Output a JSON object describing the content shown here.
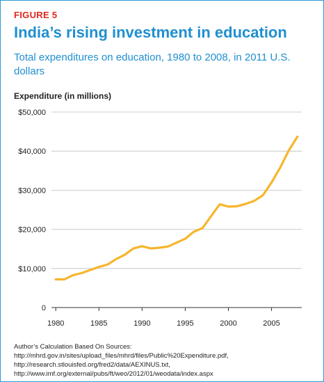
{
  "figure_label": "FIGURE 5",
  "title": "India’s rising investment in education",
  "subtitle": "Total expenditures on education, 1980 to 2008, in 2011 U.S. dollars",
  "source": "Author’s Calculation Based On Sources: http://mhrd.gov.in/sites/upload_files/mhrd/files/Public%20Expenditure.pdf, http://research.stlouisfed.org/fred2/data/AEXINUS.txt, http://www.imf.org/external/pubs/ft/weo/2012/01/weodata/index.aspx",
  "colors": {
    "line": "#f7b52c",
    "title": "#1f8fd0",
    "figure_label": "#e0261b",
    "grid": "#bdbdbd",
    "border": "#2a9ad6"
  },
  "chart_data": {
    "type": "line",
    "ylabel": "Expenditure (in millions)",
    "xlim": [
      1979.5,
      2008.5
    ],
    "ylim": [
      0,
      50000
    ],
    "x_ticks": [
      1980,
      1985,
      1990,
      1995,
      2000,
      2005
    ],
    "x_tick_labels": [
      "1980",
      "1985",
      "1990",
      "1995",
      "2000",
      "2005"
    ],
    "y_ticks": [
      0,
      10000,
      20000,
      30000,
      40000,
      50000
    ],
    "y_tick_labels": [
      "0",
      "$10,000",
      "$20,000",
      "$30,000",
      "$40,000",
      "$50,000"
    ],
    "grid": true,
    "x": [
      1980,
      1981,
      1982,
      1983,
      1984,
      1985,
      1986,
      1987,
      1988,
      1989,
      1990,
      1991,
      1992,
      1993,
      1994,
      1995,
      1996,
      1997,
      1998,
      1999,
      2000,
      2001,
      2002,
      2003,
      2004,
      2005,
      2006,
      2007,
      2008
    ],
    "y": [
      7200,
      7200,
      8300,
      8800,
      9600,
      10400,
      11000,
      12400,
      13500,
      15100,
      15700,
      15100,
      15300,
      15600,
      16600,
      17600,
      19400,
      20300,
      23400,
      26400,
      25800,
      25900,
      26500,
      27300,
      28700,
      32000,
      35800,
      40200,
      43700
    ]
  }
}
